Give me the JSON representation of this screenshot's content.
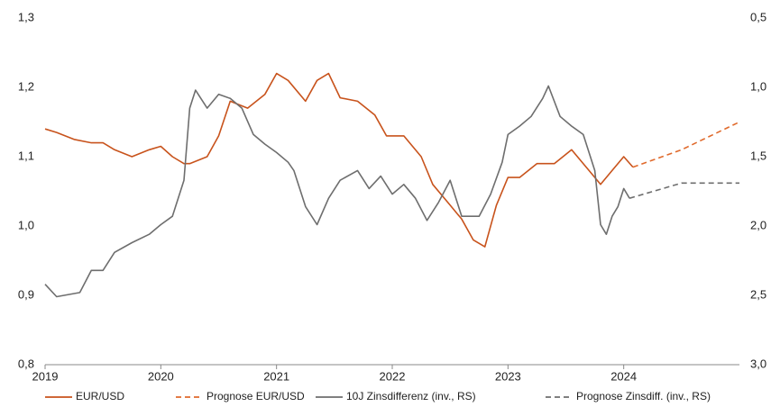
{
  "chart_data": {
    "type": "line",
    "xlim": [
      2019,
      2025
    ],
    "xticks": [
      2019,
      2020,
      2021,
      2022,
      2023,
      2024
    ],
    "ylim": [
      0.8,
      1.3
    ],
    "yticks": [
      {
        "value": 0.8,
        "label": "0,8"
      },
      {
        "value": 0.9,
        "label": "0,9"
      },
      {
        "value": 1.0,
        "label": "1,0"
      },
      {
        "value": 1.1,
        "label": "1,1"
      },
      {
        "value": 1.2,
        "label": "1,2"
      },
      {
        "value": 1.3,
        "label": "1,3"
      }
    ],
    "y2lim": [
      0.5,
      3.0
    ],
    "y2_inverted": true,
    "y2ticks": [
      {
        "value": 0.5,
        "label": "0,5"
      },
      {
        "value": 1.0,
        "label": "1,0"
      },
      {
        "value": 1.5,
        "label": "1,5"
      },
      {
        "value": 2.0,
        "label": "2,0"
      },
      {
        "value": 2.5,
        "label": "2,5"
      },
      {
        "value": 3.0,
        "label": "3,0"
      }
    ],
    "legend": "bottom",
    "series": [
      {
        "name": "EUR/USD",
        "color": "#c8531c",
        "dashed": false,
        "x": [
          2019.0,
          2019.1,
          2019.25,
          2019.4,
          2019.5,
          2019.6,
          2019.75,
          2019.9,
          2020.0,
          2020.1,
          2020.2,
          2020.25,
          2020.4,
          2020.5,
          2020.6,
          2020.75,
          2020.9,
          2021.0,
          2021.1,
          2021.25,
          2021.35,
          2021.45,
          2021.55,
          2021.7,
          2021.85,
          2021.95,
          2022.1,
          2022.25,
          2022.35,
          2022.5,
          2022.6,
          2022.7,
          2022.8,
          2022.9,
          2023.0,
          2023.1,
          2023.25,
          2023.4,
          2023.55,
          2023.7,
          2023.8,
          2023.9,
          2024.0,
          2024.08
        ],
        "values": [
          1.14,
          1.135,
          1.125,
          1.12,
          1.12,
          1.11,
          1.1,
          1.11,
          1.115,
          1.1,
          1.09,
          1.09,
          1.1,
          1.13,
          1.18,
          1.17,
          1.19,
          1.22,
          1.21,
          1.18,
          1.21,
          1.22,
          1.185,
          1.18,
          1.16,
          1.13,
          1.13,
          1.1,
          1.06,
          1.03,
          1.01,
          0.98,
          0.97,
          1.03,
          1.07,
          1.07,
          1.09,
          1.09,
          1.11,
          1.08,
          1.06,
          1.08,
          1.1,
          1.085
        ]
      },
      {
        "name": "Prognose EUR/USD",
        "color": "#e06a2c",
        "dashed": true,
        "x": [
          2024.08,
          2024.5,
          2025.0
        ],
        "values": [
          1.085,
          1.11,
          1.15
        ]
      },
      {
        "name": "10J Zinsdifferenz (inv., RS)",
        "color": "#6e6e6e",
        "dashed": false,
        "axis": "y2",
        "x": [
          2019.0,
          2019.1,
          2019.3,
          2019.4,
          2019.5,
          2019.6,
          2019.75,
          2019.9,
          2020.0,
          2020.1,
          2020.2,
          2020.25,
          2020.3,
          2020.4,
          2020.5,
          2020.6,
          2020.7,
          2020.8,
          2020.9,
          2021.0,
          2021.1,
          2021.15,
          2021.25,
          2021.35,
          2021.45,
          2021.55,
          2021.7,
          2021.8,
          2021.9,
          2022.0,
          2022.1,
          2022.2,
          2022.3,
          2022.4,
          2022.5,
          2022.6,
          2022.75,
          2022.85,
          2022.95,
          2023.0,
          2023.1,
          2023.2,
          2023.3,
          2023.35,
          2023.45,
          2023.55,
          2023.65,
          2023.75,
          2023.8,
          2023.85,
          2023.9,
          2023.95,
          2024.0,
          2024.05
        ],
        "values": [
          2.42,
          2.51,
          2.48,
          2.32,
          2.32,
          2.19,
          2.12,
          2.06,
          1.99,
          1.93,
          1.67,
          1.15,
          1.02,
          1.15,
          1.05,
          1.08,
          1.15,
          1.34,
          1.41,
          1.47,
          1.54,
          1.6,
          1.86,
          1.99,
          1.8,
          1.67,
          1.6,
          1.73,
          1.64,
          1.77,
          1.7,
          1.8,
          1.96,
          1.83,
          1.67,
          1.93,
          1.93,
          1.77,
          1.54,
          1.34,
          1.28,
          1.21,
          1.08,
          0.99,
          1.21,
          1.28,
          1.34,
          1.6,
          1.99,
          2.06,
          1.93,
          1.86,
          1.73,
          1.8
        ]
      },
      {
        "name": "Prognose Zinsdiff. (inv., RS)",
        "color": "#6e6e6e",
        "dashed": true,
        "axis": "y2",
        "x": [
          2024.05,
          2024.5,
          2025.0
        ],
        "values": [
          1.8,
          1.69,
          1.69
        ]
      }
    ]
  }
}
